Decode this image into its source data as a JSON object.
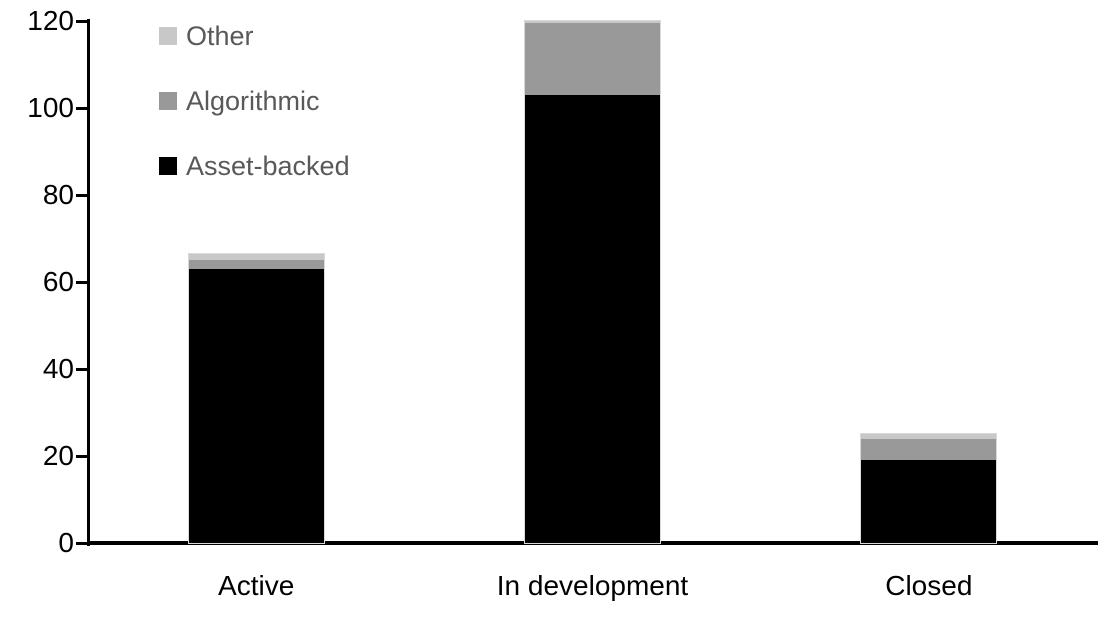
{
  "chart_data": {
    "type": "bar",
    "stacked": true,
    "title": "",
    "xlabel": "",
    "ylabel": "",
    "categories": [
      "Active",
      "In development",
      "Closed"
    ],
    "series": [
      {
        "name": "Asset-backed",
        "color": "#000000",
        "values": [
          63,
          103,
          19
        ]
      },
      {
        "name": "Algorithmic",
        "color": "#999999",
        "values": [
          2,
          16.5,
          5
        ]
      },
      {
        "name": "Other",
        "color": "#c8c8c8",
        "values": [
          1.5,
          0.5,
          1
        ]
      }
    ],
    "totals": [
      66.5,
      120,
      25
    ],
    "ylim": [
      0,
      120
    ],
    "yticks": [
      0,
      20,
      40,
      60,
      80,
      100,
      120
    ],
    "grid": false,
    "legend": {
      "position": "top-left",
      "order": [
        "Other",
        "Algorithmic",
        "Asset-backed"
      ]
    },
    "colors": {
      "axis": "#000000",
      "tick_label": "#000000",
      "category_label": "#000000",
      "legend_text": "#595959",
      "bar_outline": "#d9d9d9",
      "background": "#ffffff"
    }
  }
}
